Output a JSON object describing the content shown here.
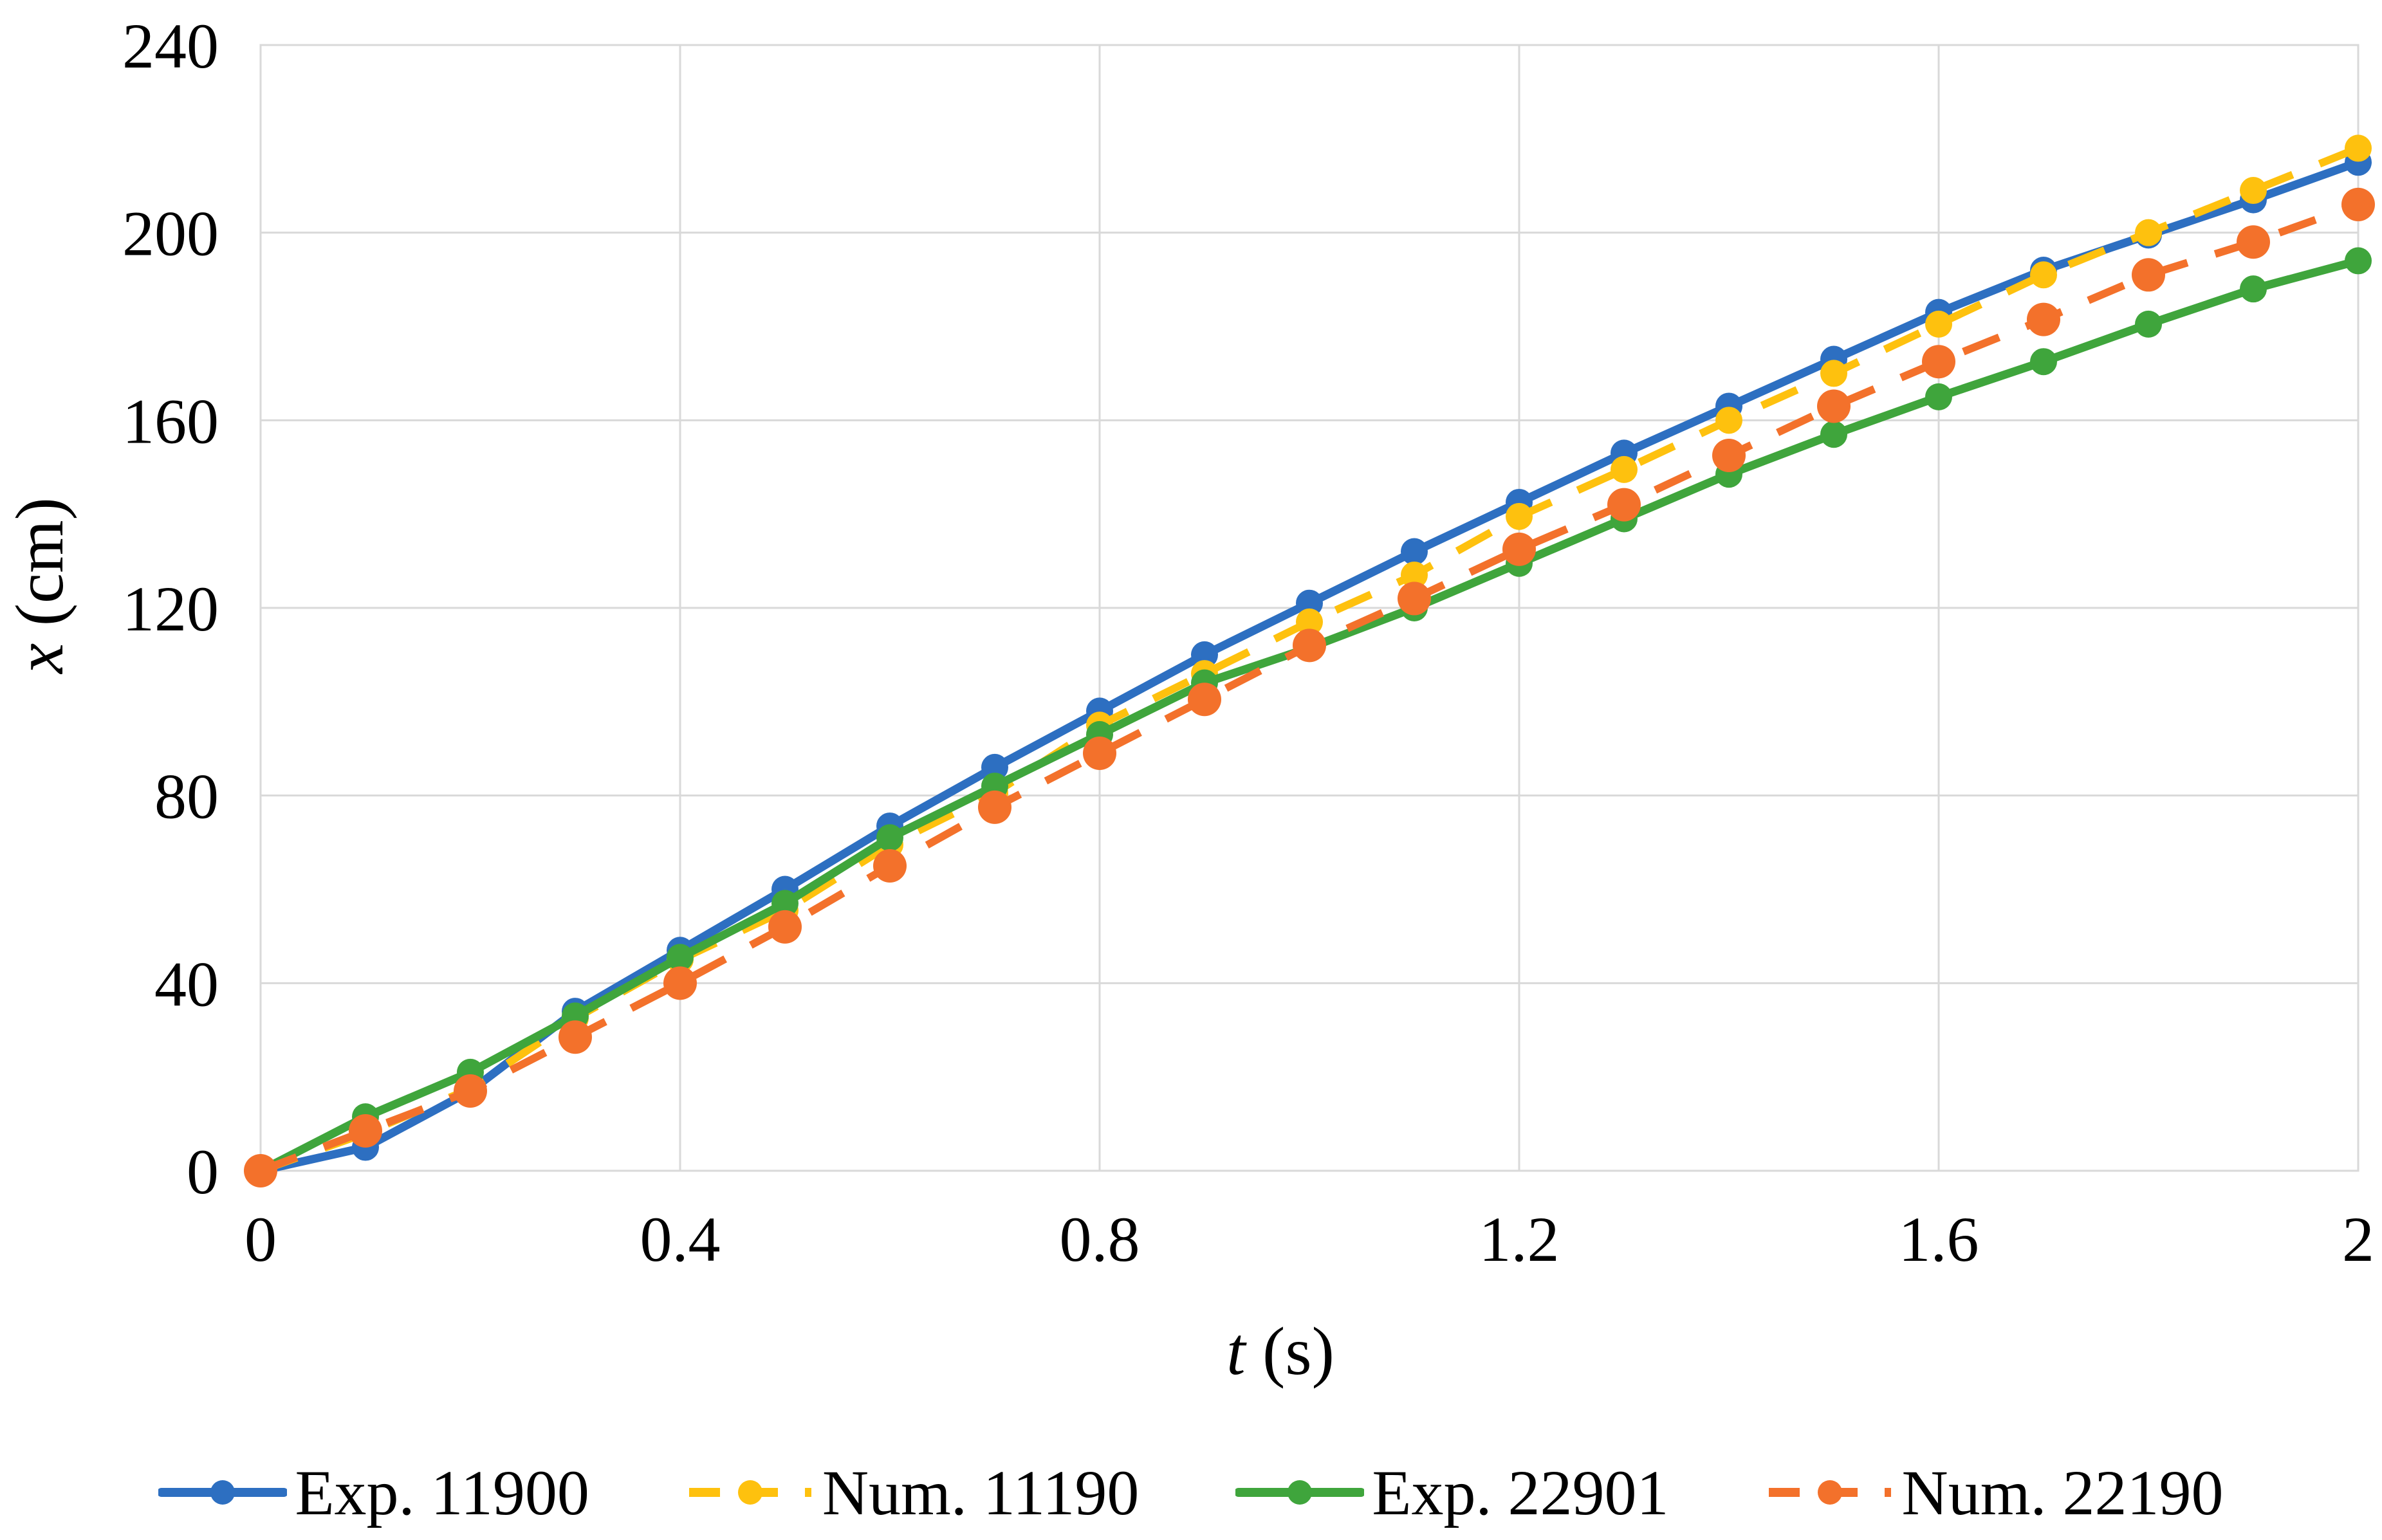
{
  "chart_data": {
    "type": "line",
    "title": "",
    "xlabel_var": "t",
    "xlabel_unit": "(s)",
    "ylabel_var": "x",
    "ylabel_unit": "(cm)",
    "xlim": [
      0,
      2
    ],
    "ylim": [
      0,
      240
    ],
    "grid": true,
    "legend_position": "bottom",
    "xticks": [
      {
        "label": "0",
        "t": 0.0
      },
      {
        "label": "0.4",
        "t": 0.4
      },
      {
        "label": "0.8",
        "t": 0.8
      },
      {
        "label": "1.2",
        "t": 1.2
      },
      {
        "label": "1.6",
        "t": 1.6
      },
      {
        "label": "2",
        "t": 2.0
      }
    ],
    "yticks": [
      {
        "label": "0",
        "v": 0
      },
      {
        "label": "40",
        "v": 40
      },
      {
        "label": "80",
        "v": 80
      },
      {
        "label": "120",
        "v": 120
      },
      {
        "label": "160",
        "v": 160
      },
      {
        "label": "200",
        "v": 200
      },
      {
        "label": "240",
        "v": 240
      }
    ],
    "x": [
      0,
      0.1,
      0.2,
      0.3,
      0.4,
      0.5,
      0.6,
      0.7,
      0.8,
      0.9,
      1.0,
      1.1,
      1.2,
      1.3,
      1.4,
      1.5,
      1.6,
      1.7,
      1.8,
      1.9,
      2.0
    ],
    "series": [
      {
        "name": "Exp. 11900",
        "color": "#2D6FC1",
        "style": "solid",
        "marker": "circle",
        "values": [
          0,
          5,
          17,
          34,
          47,
          60,
          73.5,
          86,
          98,
          110,
          121,
          132,
          142.5,
          153,
          163,
          173,
          183,
          192,
          199.5,
          207,
          215
        ]
      },
      {
        "name": "Num. 11190",
        "color": "#FEC10E",
        "style": "dashed",
        "marker": "circle",
        "values": [
          0,
          8,
          17.5,
          32.5,
          45,
          55.5,
          69.5,
          80.5,
          95,
          106,
          117,
          127,
          139.5,
          149.5,
          160,
          170,
          180.5,
          191,
          200,
          209,
          218
        ]
      },
      {
        "name": "Exp. 22901",
        "color": "#3FA53C",
        "style": "solid",
        "marker": "circle",
        "values": [
          0,
          11.5,
          21,
          33,
          45.5,
          57,
          71,
          82,
          93,
          104,
          111.5,
          120,
          129.5,
          139,
          148.5,
          157,
          165,
          172.5,
          180.5,
          188,
          194
        ]
      },
      {
        "name": "Num. 22190",
        "color": "#F3712B",
        "style": "dashed",
        "marker": "circle",
        "values": [
          0,
          8.5,
          17,
          28.5,
          40,
          52,
          65,
          77.5,
          89,
          100.5,
          112,
          122,
          132.5,
          142,
          152.5,
          163,
          172.5,
          181.5,
          191,
          198,
          206
        ]
      }
    ],
    "grid_color": "#D9D9D9"
  }
}
